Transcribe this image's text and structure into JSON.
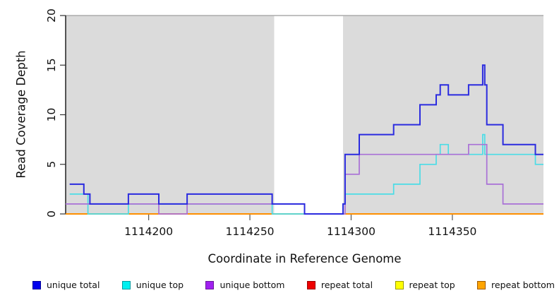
{
  "axes": {
    "y_label": "Read Coverage Depth",
    "x_label": "Coordinate in Reference Genome"
  },
  "chart_data": {
    "type": "line",
    "step": true,
    "title": "",
    "xlabel": "Coordinate in Reference Genome",
    "ylabel": "Read Coverage Depth",
    "xlim": [
      1114159,
      1114395
    ],
    "ylim": [
      0,
      20
    ],
    "x_end": 1114395,
    "x_ticks": [
      1114200,
      1114250,
      1114300,
      1114350
    ],
    "y_ticks": [
      0,
      5,
      10,
      15,
      20
    ],
    "grid": false,
    "plot_background": "#FFFFFF",
    "shaded_regions": [
      {
        "x0": 1114159,
        "x1": 1114262,
        "color": "#DBDBDB"
      },
      {
        "x0": 1114296,
        "x1": 1114395,
        "color": "#DBDBDB"
      }
    ],
    "max_depth_line": {
      "y": 20,
      "color": "#ABABAB"
    },
    "draw_order": [
      "repeat total",
      "repeat top",
      "repeat bottom",
      "unique top",
      "unique bottom",
      "unique total"
    ],
    "series": [
      {
        "name": "unique total",
        "line_color": "#2B2BDF",
        "line_width": 2,
        "steps": [
          [
            1114161,
            3
          ],
          [
            1114168,
            2
          ],
          [
            1114171,
            1
          ],
          [
            1114190,
            2
          ],
          [
            1114205,
            1
          ],
          [
            1114219,
            2
          ],
          [
            1114261,
            1
          ],
          [
            1114277,
            0
          ],
          [
            1114296,
            1
          ],
          [
            1114297,
            6
          ],
          [
            1114304,
            8
          ],
          [
            1114321,
            9
          ],
          [
            1114334,
            11
          ],
          [
            1114342,
            12
          ],
          [
            1114344,
            13
          ],
          [
            1114348,
            12
          ],
          [
            1114358,
            13
          ],
          [
            1114365,
            15
          ],
          [
            1114366,
            13
          ],
          [
            1114367,
            9
          ],
          [
            1114375,
            7
          ],
          [
            1114391,
            6
          ]
        ]
      },
      {
        "name": "unique top",
        "line_color": "#4BDCE6",
        "line_width": 1.7,
        "steps": [
          [
            1114161,
            2
          ],
          [
            1114170,
            0
          ],
          [
            1114190,
            1
          ],
          [
            1114261,
            0
          ],
          [
            1114296,
            1
          ],
          [
            1114297,
            2
          ],
          [
            1114321,
            3
          ],
          [
            1114334,
            5
          ],
          [
            1114342,
            6
          ],
          [
            1114344,
            7
          ],
          [
            1114348,
            6
          ],
          [
            1114365,
            8
          ],
          [
            1114366,
            6
          ],
          [
            1114391,
            5
          ]
        ]
      },
      {
        "name": "unique bottom",
        "line_color": "#A970D6",
        "line_width": 1.7,
        "steps": [
          [
            1114159,
            1
          ],
          [
            1114205,
            0
          ],
          [
            1114219,
            1
          ],
          [
            1114277,
            0
          ],
          [
            1114297,
            4
          ],
          [
            1114304,
            6
          ],
          [
            1114358,
            7
          ],
          [
            1114367,
            3
          ],
          [
            1114375,
            1
          ]
        ]
      },
      {
        "name": "repeat total",
        "line_color": "#DD1100",
        "line_width": 1.7,
        "steps": [
          [
            1114159,
            0
          ]
        ]
      },
      {
        "name": "repeat top",
        "line_color": "#F2F200",
        "line_width": 1.7,
        "steps": [
          [
            1114159,
            0
          ]
        ]
      },
      {
        "name": "repeat bottom",
        "line_color": "#FF8F00",
        "line_width": 2.1,
        "steps": [
          [
            1114159,
            0
          ]
        ]
      }
    ]
  },
  "legend": {
    "items": [
      {
        "label": "unique total",
        "color": "#0000EE",
        "border": "#00009B"
      },
      {
        "label": "unique top",
        "color": "#00F0F0",
        "border": "#009BA0"
      },
      {
        "label": "unique bottom",
        "color": "#A020F0",
        "border": "#6A1B9A"
      },
      {
        "label": "repeat total",
        "color": "#EE0000",
        "border": "#9B0000"
      },
      {
        "label": "repeat top",
        "color": "#FFFF00",
        "border": "#9B9B00"
      },
      {
        "label": "repeat bottom",
        "color": "#FFA500",
        "border": "#A05A00"
      }
    ]
  }
}
